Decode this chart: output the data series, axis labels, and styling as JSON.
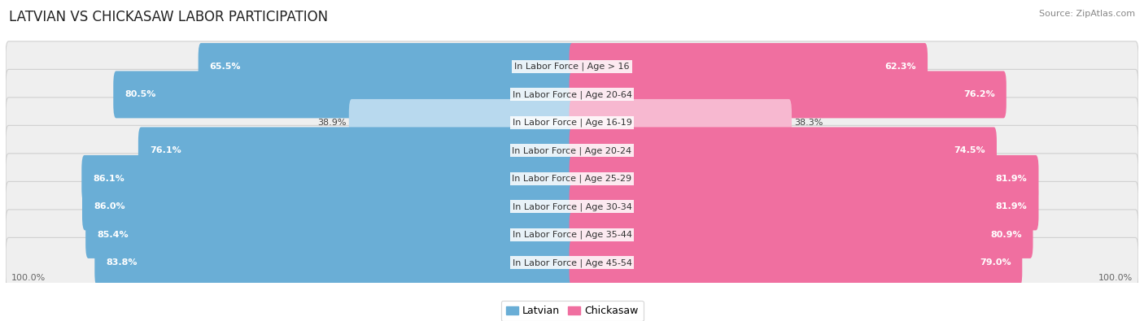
{
  "title": "LATVIAN VS CHICKASAW LABOR PARTICIPATION",
  "source": "Source: ZipAtlas.com",
  "categories": [
    "In Labor Force | Age > 16",
    "In Labor Force | Age 20-64",
    "In Labor Force | Age 16-19",
    "In Labor Force | Age 20-24",
    "In Labor Force | Age 25-29",
    "In Labor Force | Age 30-34",
    "In Labor Force | Age 35-44",
    "In Labor Force | Age 45-54"
  ],
  "latvian_values": [
    65.5,
    80.5,
    38.9,
    76.1,
    86.1,
    86.0,
    85.4,
    83.8
  ],
  "chickasaw_values": [
    62.3,
    76.2,
    38.3,
    74.5,
    81.9,
    81.9,
    80.9,
    79.0
  ],
  "latvian_color": "#6aaed6",
  "latvian_light_color": "#b8d9ee",
  "chickasaw_color": "#f06fa0",
  "chickasaw_light_color": "#f7b8d0",
  "bg_row_color": "#efefef",
  "bg_row_color_alt": "#e8e8e8",
  "bar_height": 0.68,
  "max_value": 100.0,
  "title_fontsize": 12,
  "label_fontsize": 8,
  "value_fontsize": 8,
  "legend_fontsize": 9,
  "source_fontsize": 8
}
